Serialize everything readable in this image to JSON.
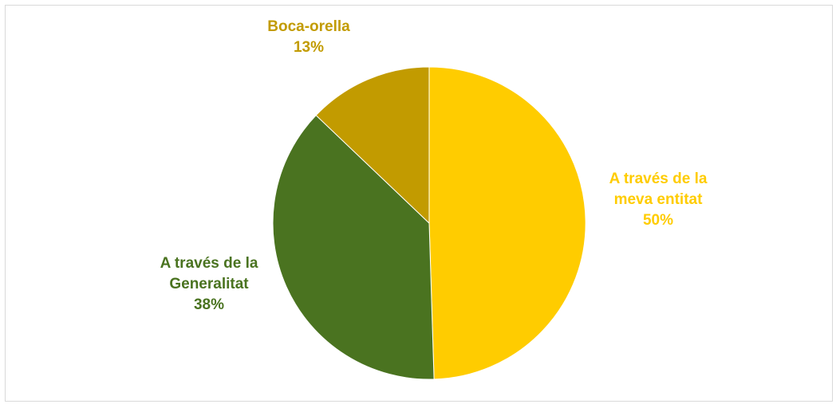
{
  "chart_data": {
    "type": "pie",
    "title": "",
    "slices": [
      {
        "label_lines": [
          "A través de la",
          "meva entitat"
        ],
        "value": 50,
        "value_text": "50%",
        "color": "#ffcc00"
      },
      {
        "label_lines": [
          "A través de la",
          "Generalitat"
        ],
        "value": 38,
        "value_text": "38%",
        "color": "#4a7320"
      },
      {
        "label_lines": [
          "Boca-orella"
        ],
        "value": 13,
        "value_text": "13%",
        "color": "#c29b00"
      }
    ],
    "start_angle_deg": 0,
    "direction": "clockwise",
    "legend": "none",
    "data_labels": "outside"
  }
}
